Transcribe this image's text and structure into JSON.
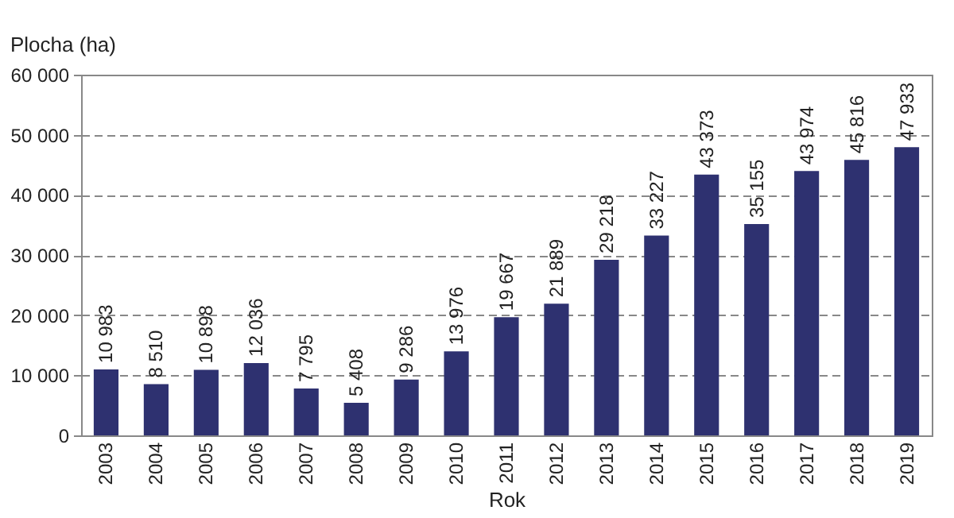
{
  "chart_data": {
    "type": "bar",
    "xlabel": "Rok",
    "ylabel": "Plocha (ha)",
    "categories": [
      "2003",
      "2004",
      "2005",
      "2006",
      "2007",
      "2008",
      "2009",
      "2010",
      "2011",
      "2012",
      "2013",
      "2014",
      "2015",
      "2016",
      "2017",
      "2018",
      "2019"
    ],
    "values": [
      10983,
      8510,
      10898,
      12036,
      7795,
      5408,
      9286,
      13976,
      19667,
      21889,
      29218,
      33227,
      43373,
      35155,
      43974,
      45816,
      47933
    ],
    "value_labels": [
      "10 983",
      "8 510",
      "10 898",
      "12 036",
      "7 795",
      "5 408",
      "9 286",
      "13 976",
      "19 667",
      "21 889",
      "29 218",
      "33 227",
      "43 373",
      "35 155",
      "43 974",
      "45 816",
      "47 933"
    ],
    "color": "#2e3170",
    "ylim": [
      0,
      60000
    ],
    "yticks": [
      0,
      {
        "value": 10000,
        "label": "10 000"
      },
      {
        "value": 20000,
        "label": "20 000"
      },
      {
        "value": 30000,
        "label": "30 000"
      },
      {
        "value": 40000,
        "label": "40 000"
      },
      {
        "value": 50000,
        "label": "50 000"
      },
      {
        "value": 60000,
        "label": "60 000"
      }
    ],
    "grid": "y",
    "line_style": "dashed"
  }
}
